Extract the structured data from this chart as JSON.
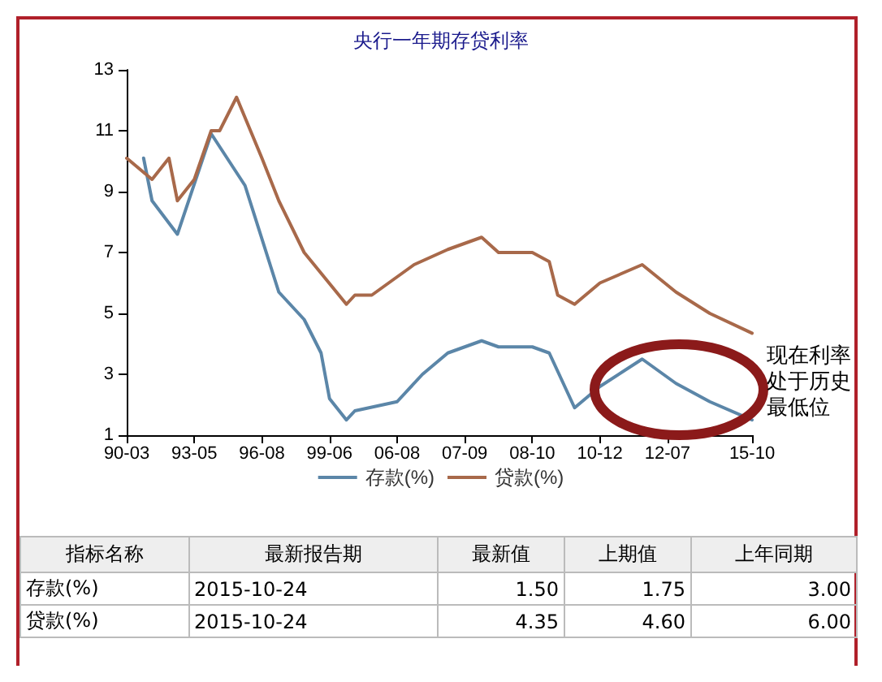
{
  "chart_data": [
    {
      "type": "line",
      "title": "央行一年期存贷利率",
      "categories": [
        "90-03",
        null,
        null,
        null,
        null,
        null,
        null,
        null,
        "93-05",
        null,
        null,
        null,
        null,
        null,
        null,
        null,
        "96-08",
        null,
        null,
        null,
        null,
        null,
        null,
        null,
        "99-06",
        null,
        null,
        null,
        null,
        null,
        null,
        null,
        "06-08",
        null,
        null,
        null,
        null,
        null,
        null,
        null,
        "07-09",
        null,
        null,
        null,
        null,
        null,
        null,
        null,
        "08-10",
        null,
        null,
        null,
        null,
        null,
        null,
        null,
        "10-12",
        null,
        null,
        null,
        null,
        null,
        null,
        null,
        "12-07",
        null,
        null,
        null,
        null,
        null,
        null,
        null,
        null,
        null,
        "15-10"
      ],
      "ylim": [
        1,
        13
      ],
      "yticks": [
        1,
        3,
        5,
        7,
        9,
        11,
        13
      ],
      "series": [
        {
          "name": "存款(%)",
          "color": "#5b86a8",
          "values": [
            null,
            null,
            10.1,
            8.7,
            null,
            null,
            7.6,
            null,
            null,
            null,
            10.9,
            null,
            null,
            null,
            9.2,
            null,
            null,
            null,
            5.7,
            null,
            null,
            4.8,
            null,
            3.7,
            2.2,
            null,
            1.5,
            1.8,
            null,
            null,
            null,
            null,
            2.1,
            null,
            null,
            3.0,
            null,
            null,
            3.7,
            null,
            null,
            null,
            4.1,
            null,
            3.9,
            null,
            null,
            null,
            3.9,
            null,
            3.7,
            null,
            2.5,
            1.9,
            null,
            null,
            2.6,
            null,
            null,
            null,
            null,
            3.5,
            null,
            null,
            null,
            2.7,
            null,
            null,
            null,
            2.1,
            null,
            null,
            null,
            null,
            1.5
          ]
        },
        {
          "name": "贷款(%)",
          "color": "#a8694a",
          "values": [
            10.1,
            null,
            null,
            9.4,
            null,
            10.1,
            8.7,
            null,
            9.4,
            null,
            11.0,
            11.0,
            null,
            12.1,
            null,
            null,
            10.1,
            null,
            8.7,
            null,
            null,
            7.0,
            null,
            null,
            null,
            null,
            5.3,
            5.6,
            null,
            5.6,
            null,
            null,
            6.2,
            null,
            6.6,
            null,
            null,
            null,
            7.1,
            null,
            null,
            null,
            7.5,
            null,
            7.0,
            null,
            null,
            null,
            7.0,
            null,
            6.7,
            5.6,
            null,
            5.3,
            null,
            null,
            6.0,
            null,
            null,
            null,
            null,
            6.6,
            null,
            null,
            null,
            5.7,
            null,
            null,
            null,
            5.0,
            null,
            null,
            null,
            null,
            4.35
          ]
        }
      ],
      "legend": "bottom",
      "grid": false,
      "marker": "none",
      "line_style": "solid",
      "annotations": [
        "现在利率处于历史最低位"
      ]
    },
    {
      "type": "other",
      "categories": [
        "指标名称",
        "最新报告期",
        "最新值",
        "上期值",
        "上年同期"
      ],
      "y_categories": [
        "存款(%)",
        "贷款(%)"
      ],
      "cell_labels": [
        [
          "2015-10-24",
          "1.50",
          "1.75",
          "3.00"
        ],
        [
          "2015-10-24",
          "4.35",
          "4.60",
          "6.00"
        ]
      ]
    }
  ]
}
